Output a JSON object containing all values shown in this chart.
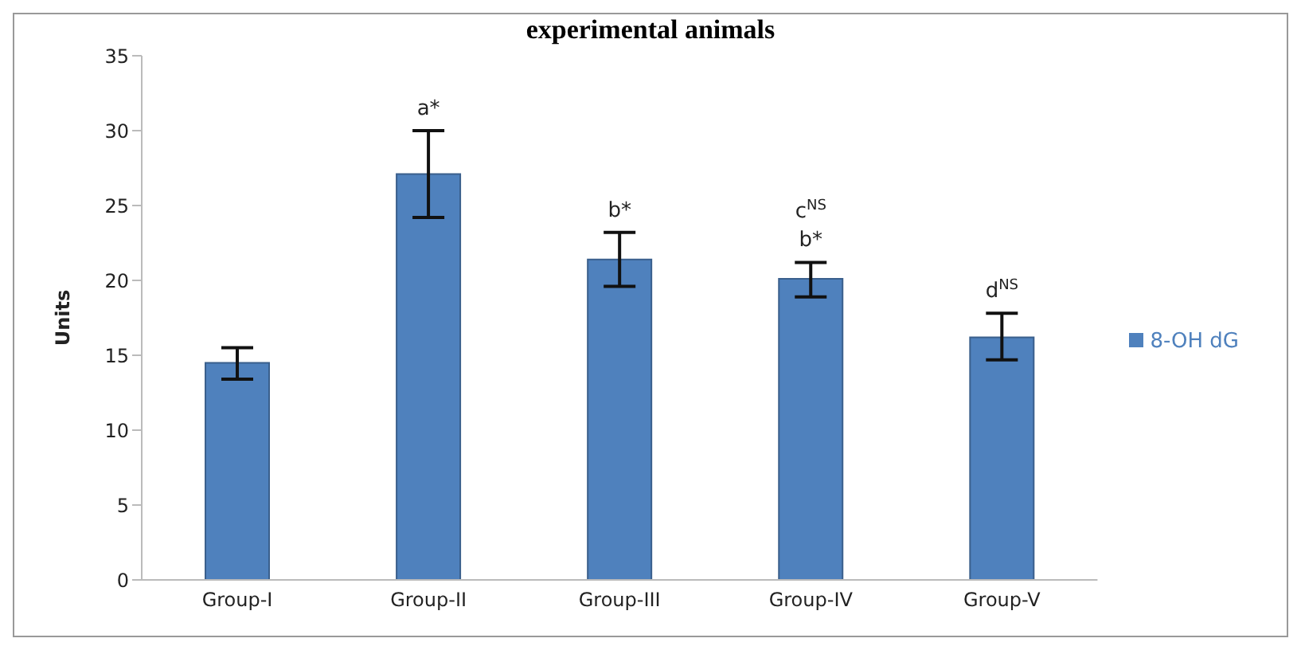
{
  "chart_data": {
    "type": "bar",
    "title": "experimental animals",
    "ylabel": "Units",
    "categories": [
      "Group-I",
      "Group-II",
      "Group-III",
      "Group-IV",
      "Group-V"
    ],
    "series": [
      {
        "name": "8-OH dG",
        "color": "#4f81bd",
        "values": [
          14.5,
          27.1,
          21.4,
          20.1,
          16.2
        ],
        "errors": [
          [
            13.4,
            15.5
          ],
          [
            24.2,
            30.0
          ],
          [
            19.6,
            23.2
          ],
          [
            18.9,
            21.2
          ],
          [
            14.7,
            17.8
          ]
        ],
        "value_labels": [
          null,
          "a*",
          "b*",
          "c$^{NS}$\nb*",
          "d$^{NS}$"
        ]
      }
    ],
    "ylim": [
      0,
      35
    ],
    "yticks": [
      0,
      5,
      10,
      15,
      20,
      25,
      30,
      35
    ],
    "grid": false,
    "legend": "right"
  }
}
